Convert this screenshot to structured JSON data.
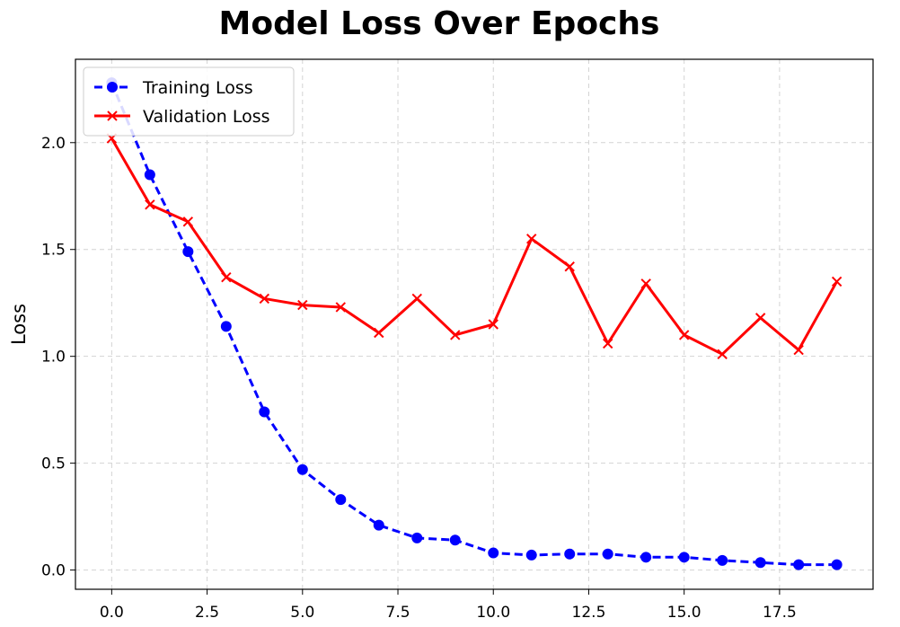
{
  "chart_data": {
    "type": "line",
    "title": "Model Loss Over Epochs",
    "xlabel": "",
    "ylabel": "Loss",
    "xlim": [
      -0.95,
      19.95
    ],
    "ylim": [
      -0.09,
      2.39
    ],
    "xticks": [
      0,
      2.5,
      5,
      7.5,
      10,
      12.5,
      15,
      17.5
    ],
    "xtick_labels": [
      "0.0",
      "2.5",
      "5.0",
      "7.5",
      "10.0",
      "12.5",
      "15.0",
      "17.5"
    ],
    "yticks": [
      0,
      0.5,
      1.0,
      1.5,
      2.0
    ],
    "ytick_labels": [
      "0.0",
      "0.5",
      "1.0",
      "1.5",
      "2.0"
    ],
    "grid": true,
    "legend_position": "upper-left",
    "x": [
      0,
      1,
      2,
      3,
      4,
      5,
      6,
      7,
      8,
      9,
      10,
      11,
      12,
      13,
      14,
      15,
      16,
      17,
      18,
      19
    ],
    "series": [
      {
        "name": "Training Loss",
        "color": "#0000ff",
        "line_style": "dashed",
        "marker": "circle",
        "values": [
          2.28,
          1.85,
          1.49,
          1.14,
          0.74,
          0.47,
          0.33,
          0.21,
          0.15,
          0.14,
          0.08,
          0.07,
          0.075,
          0.075,
          0.06,
          0.06,
          0.045,
          0.035,
          0.025,
          0.025
        ]
      },
      {
        "name": "Validation Loss",
        "color": "#ff0000",
        "line_style": "solid",
        "marker": "x",
        "values": [
          2.02,
          1.71,
          1.63,
          1.37,
          1.27,
          1.24,
          1.23,
          1.11,
          1.27,
          1.1,
          1.15,
          1.55,
          1.42,
          1.06,
          1.34,
          1.1,
          1.01,
          1.18,
          1.03,
          1.35
        ]
      }
    ]
  }
}
